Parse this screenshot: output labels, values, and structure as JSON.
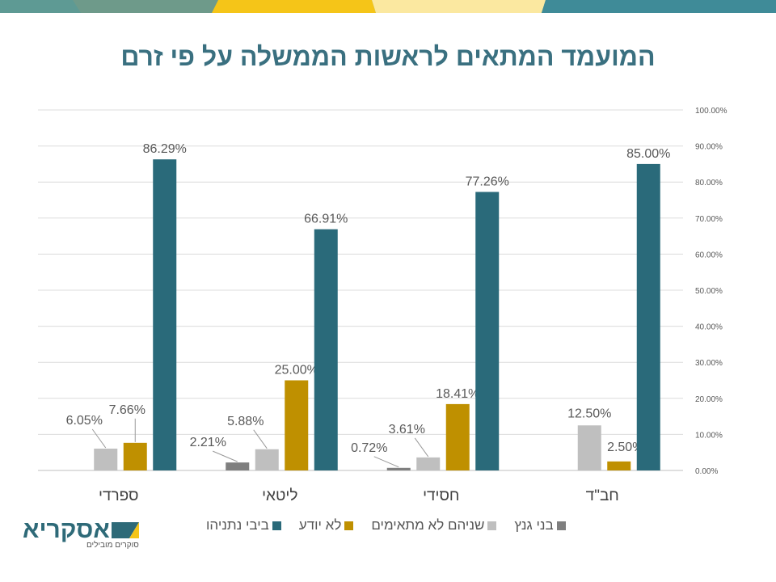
{
  "title": "המועמד המתאים לראשות הממשלה על פי זרם",
  "logo": {
    "name": "אסקריא",
    "tagline": "סוקרים מובילים"
  },
  "chart_data": {
    "type": "bar",
    "title": "המועמד המתאים לראשות הממשלה על פי זרם",
    "categories": [
      "ספרדי",
      "ליטאי",
      "חסידי",
      "חב\"ד"
    ],
    "series": [
      {
        "name": "בני גנץ",
        "color": "#7f7f7f",
        "values": [
          null,
          2.21,
          0.72,
          null
        ],
        "labels": [
          "",
          "2.21%",
          "0.72%",
          ""
        ]
      },
      {
        "name": "שניהם לא מתאימים",
        "color": "#bfbfbf",
        "values": [
          6.05,
          5.88,
          3.61,
          12.5
        ],
        "labels": [
          "6.05%",
          "5.88%",
          "3.61%",
          "12.50%"
        ]
      },
      {
        "name": "לא יודע",
        "color": "#bf9000",
        "values": [
          7.66,
          25.0,
          18.41,
          2.5
        ],
        "labels": [
          "7.66%",
          "25.00%",
          "18.41%",
          "2.50%"
        ]
      },
      {
        "name": "ביבי נתניהו",
        "color": "#2a6a7a",
        "values": [
          86.29,
          66.91,
          77.26,
          85.0
        ],
        "labels": [
          "86.29%",
          "66.91%",
          "77.26%",
          "85.00%"
        ]
      }
    ],
    "ylim": [
      0,
      100
    ],
    "yticks": [
      "0.00%",
      "10.00%",
      "20.00%",
      "30.00%",
      "40.00%",
      "50.00%",
      "60.00%",
      "70.00%",
      "80.00%",
      "90.00%",
      "100.00%"
    ],
    "grid": true,
    "legend": "bottom"
  }
}
